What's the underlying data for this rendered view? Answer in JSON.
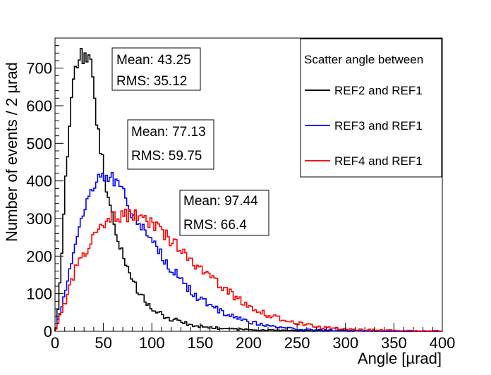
{
  "chart_data": {
    "type": "line",
    "style": "step-histogram",
    "xlabel": "Angle [µrad]",
    "ylabel": "Number of events / 2 µrad",
    "xlim": [
      0,
      400
    ],
    "ylim": [
      0,
      780
    ],
    "bin_width": 2,
    "grid": false,
    "x_ticks": [
      "0",
      "50",
      "100",
      "150",
      "200",
      "250",
      "300",
      "350",
      "400"
    ],
    "x_tick_values": [
      0,
      50,
      100,
      150,
      200,
      250,
      300,
      350,
      400
    ],
    "y_ticks": [
      "0",
      "100",
      "200",
      "300",
      "400",
      "500",
      "600",
      "700"
    ],
    "y_tick_values": [
      0,
      100,
      200,
      300,
      400,
      500,
      600,
      700
    ],
    "legend": {
      "title": "Scatter angle between",
      "position": "top-right",
      "entries": [
        "REF2 and REF1",
        "REF3 and REF1",
        "REF4 and REF1"
      ]
    },
    "series": [
      {
        "name": "REF2 and REF1",
        "color": "#000000",
        "stats": {
          "mean_label": "Mean: 43.25",
          "rms_label": "RMS: 35.12"
        },
        "profile": [
          [
            0,
            0
          ],
          [
            2,
            25
          ],
          [
            4,
            80
          ],
          [
            6,
            170
          ],
          [
            8,
            270
          ],
          [
            10,
            370
          ],
          [
            12,
            440
          ],
          [
            14,
            520
          ],
          [
            16,
            590
          ],
          [
            18,
            640
          ],
          [
            20,
            680
          ],
          [
            22,
            710
          ],
          [
            24,
            735
          ],
          [
            26,
            742
          ],
          [
            28,
            728
          ],
          [
            30,
            735
          ],
          [
            32,
            722
          ],
          [
            34,
            726
          ],
          [
            36,
            712
          ],
          [
            38,
            700
          ],
          [
            40,
            640
          ],
          [
            42,
            590
          ],
          [
            44,
            540
          ],
          [
            46,
            500
          ],
          [
            48,
            470
          ],
          [
            50,
            440
          ],
          [
            52,
            400
          ],
          [
            54,
            370
          ],
          [
            56,
            340
          ],
          [
            58,
            310
          ],
          [
            60,
            290
          ],
          [
            62,
            270
          ],
          [
            64,
            250
          ],
          [
            66,
            232
          ],
          [
            68,
            215
          ],
          [
            70,
            200
          ],
          [
            72,
            188
          ],
          [
            74,
            175
          ],
          [
            76,
            160
          ],
          [
            78,
            145
          ],
          [
            80,
            132
          ],
          [
            84,
            115
          ],
          [
            88,
            100
          ],
          [
            92,
            85
          ],
          [
            96,
            72
          ],
          [
            100,
            60
          ],
          [
            106,
            50
          ],
          [
            112,
            42
          ],
          [
            120,
            33
          ],
          [
            130,
            25
          ],
          [
            140,
            18
          ],
          [
            150,
            13
          ],
          [
            160,
            10
          ],
          [
            170,
            8
          ],
          [
            180,
            6
          ],
          [
            190,
            5
          ],
          [
            200,
            4
          ],
          [
            220,
            3
          ],
          [
            240,
            2
          ],
          [
            260,
            1
          ],
          [
            300,
            1
          ],
          [
            340,
            0
          ],
          [
            400,
            0
          ]
        ]
      },
      {
        "name": "REF3 and REF1",
        "color": "#0000ff",
        "stats": {
          "mean_label": "Mean: 77.13",
          "rms_label": "RMS: 59.75"
        },
        "profile": [
          [
            0,
            0
          ],
          [
            2,
            20
          ],
          [
            4,
            40
          ],
          [
            6,
            60
          ],
          [
            8,
            80
          ],
          [
            10,
            100
          ],
          [
            12,
            125
          ],
          [
            14,
            150
          ],
          [
            16,
            175
          ],
          [
            18,
            200
          ],
          [
            20,
            225
          ],
          [
            22,
            250
          ],
          [
            24,
            270
          ],
          [
            26,
            290
          ],
          [
            28,
            305
          ],
          [
            30,
            320
          ],
          [
            32,
            335
          ],
          [
            34,
            350
          ],
          [
            36,
            365
          ],
          [
            38,
            380
          ],
          [
            40,
            390
          ],
          [
            42,
            400
          ],
          [
            44,
            405
          ],
          [
            46,
            410
          ],
          [
            48,
            412
          ],
          [
            50,
            415
          ],
          [
            52,
            420
          ],
          [
            54,
            425
          ],
          [
            56,
            412
          ],
          [
            58,
            405
          ],
          [
            60,
            400
          ],
          [
            62,
            395
          ],
          [
            64,
            388
          ],
          [
            66,
            380
          ],
          [
            68,
            372
          ],
          [
            70,
            365
          ],
          [
            72,
            355
          ],
          [
            74,
            345
          ],
          [
            76,
            335
          ],
          [
            78,
            325
          ],
          [
            80,
            315
          ],
          [
            84,
            300
          ],
          [
            88,
            285
          ],
          [
            92,
            270
          ],
          [
            96,
            255
          ],
          [
            100,
            240
          ],
          [
            104,
            225
          ],
          [
            108,
            210
          ],
          [
            112,
            195
          ],
          [
            116,
            182
          ],
          [
            120,
            168
          ],
          [
            124,
            155
          ],
          [
            128,
            142
          ],
          [
            132,
            130
          ],
          [
            136,
            118
          ],
          [
            140,
            108
          ],
          [
            146,
            95
          ],
          [
            152,
            82
          ],
          [
            160,
            70
          ],
          [
            170,
            55
          ],
          [
            180,
            43
          ],
          [
            190,
            33
          ],
          [
            200,
            26
          ],
          [
            210,
            20
          ],
          [
            220,
            15
          ],
          [
            230,
            11
          ],
          [
            240,
            8
          ],
          [
            250,
            6
          ],
          [
            260,
            4
          ],
          [
            280,
            3
          ],
          [
            300,
            2
          ],
          [
            330,
            1
          ],
          [
            360,
            0
          ],
          [
            400,
            0
          ]
        ]
      },
      {
        "name": "REF4 and REF1",
        "color": "#ff0000",
        "stats": {
          "mean_label": "Mean: 97.44",
          "rms_label": "RMS: 66.4"
        },
        "profile": [
          [
            0,
            0
          ],
          [
            2,
            15
          ],
          [
            4,
            30
          ],
          [
            6,
            45
          ],
          [
            8,
            60
          ],
          [
            10,
            75
          ],
          [
            12,
            90
          ],
          [
            14,
            105
          ],
          [
            16,
            120
          ],
          [
            18,
            140
          ],
          [
            20,
            155
          ],
          [
            22,
            170
          ],
          [
            24,
            185
          ],
          [
            26,
            195
          ],
          [
            28,
            205
          ],
          [
            30,
            210
          ],
          [
            32,
            215
          ],
          [
            34,
            222
          ],
          [
            36,
            230
          ],
          [
            38,
            240
          ],
          [
            40,
            250
          ],
          [
            42,
            258
          ],
          [
            44,
            265
          ],
          [
            46,
            272
          ],
          [
            48,
            280
          ],
          [
            50,
            285
          ],
          [
            52,
            290
          ],
          [
            54,
            295
          ],
          [
            56,
            298
          ],
          [
            58,
            300
          ],
          [
            60,
            302
          ],
          [
            62,
            303
          ],
          [
            64,
            305
          ],
          [
            66,
            306
          ],
          [
            68,
            307
          ],
          [
            70,
            308
          ],
          [
            72,
            308
          ],
          [
            74,
            309
          ],
          [
            76,
            309
          ],
          [
            78,
            310
          ],
          [
            80,
            310
          ],
          [
            82,
            308
          ],
          [
            84,
            305
          ],
          [
            86,
            302
          ],
          [
            88,
            300
          ],
          [
            90,
            297
          ],
          [
            92,
            295
          ],
          [
            94,
            292
          ],
          [
            96,
            289
          ],
          [
            98,
            285
          ],
          [
            100,
            282
          ],
          [
            104,
            275
          ],
          [
            108,
            268
          ],
          [
            112,
            260
          ],
          [
            116,
            250
          ],
          [
            120,
            242
          ],
          [
            124,
            232
          ],
          [
            128,
            222
          ],
          [
            132,
            212
          ],
          [
            136,
            202
          ],
          [
            140,
            192
          ],
          [
            146,
            178
          ],
          [
            152,
            164
          ],
          [
            158,
            150
          ],
          [
            164,
            138
          ],
          [
            170,
            124
          ],
          [
            176,
            112
          ],
          [
            182,
            100
          ],
          [
            188,
            88
          ],
          [
            194,
            78
          ],
          [
            200,
            68
          ],
          [
            210,
            55
          ],
          [
            220,
            43
          ],
          [
            230,
            35
          ],
          [
            240,
            28
          ],
          [
            250,
            22
          ],
          [
            260,
            17
          ],
          [
            270,
            13
          ],
          [
            280,
            10
          ],
          [
            290,
            8
          ],
          [
            300,
            6
          ],
          [
            320,
            4
          ],
          [
            340,
            3
          ],
          [
            360,
            2
          ],
          [
            380,
            1
          ],
          [
            400,
            1
          ]
        ]
      }
    ]
  }
}
